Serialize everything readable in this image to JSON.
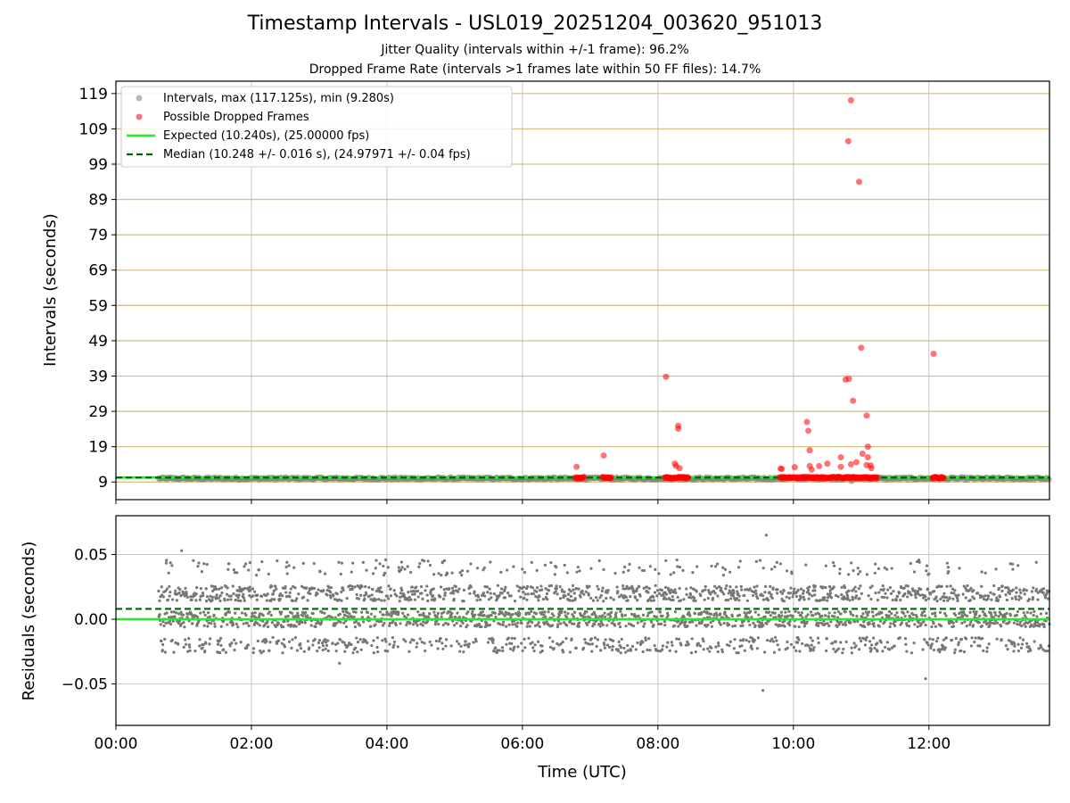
{
  "chart_data": [
    {
      "type": "scatter",
      "title": "Timestamp Intervals - USL019_20251204_003620_951013",
      "subtitle_lines": [
        "Jitter Quality (intervals within +/-1 frame): 96.2%",
        "Dropped Frame Rate (intervals >1 frames late within 50 FF files): 14.7%"
      ],
      "ylabel": "Intervals (seconds)",
      "xlabel": "",
      "xlim": [
        0.0,
        13.78
      ],
      "ylim": [
        4.0,
        122.5
      ],
      "y_ticks": [
        9,
        19,
        29,
        39,
        49,
        59,
        69,
        79,
        89,
        99,
        109,
        119
      ],
      "y_tick_labels": [
        "9",
        "19",
        "29",
        "39",
        "49",
        "59",
        "69",
        "79",
        "89",
        "99",
        "109",
        "119"
      ],
      "x_ticks": [
        0,
        2,
        4,
        6,
        8,
        10,
        12
      ],
      "grid": "on",
      "legend_position": "top-left",
      "legend": [
        "Intervals, max (117.125s), min (9.280s)",
        "Possible Dropped Frames",
        "Expected (10.240s), (25.00000 fps)",
        "Median (10.248 +/- 0.016 s), (24.97971 +/- 0.04 fps)"
      ],
      "expected_value": 10.24,
      "median_value": 10.248,
      "intervals_band": {
        "x_start": 0.63,
        "x_end": 13.78,
        "y_low": 9.28,
        "y_high": 10.29
      },
      "dropped_frame_clusters": [
        {
          "x_start": 6.78,
          "x_end": 6.92,
          "y": 10.24
        },
        {
          "x_start": 7.18,
          "x_end": 7.32,
          "y": 10.24
        },
        {
          "x_start": 8.1,
          "x_end": 8.45,
          "y": 10.24
        },
        {
          "x_start": 9.8,
          "x_end": 11.25,
          "y": 10.24
        },
        {
          "x_start": 12.05,
          "x_end": 12.22,
          "y": 10.24
        }
      ],
      "dropped_frames": [
        [
          6.8,
          13.3
        ],
        [
          7.2,
          16.5
        ],
        [
          8.12,
          38.8
        ],
        [
          8.25,
          14.2
        ],
        [
          8.27,
          13.5
        ],
        [
          8.3,
          24.9
        ],
        [
          8.3,
          24.1
        ],
        [
          8.32,
          12.9
        ],
        [
          9.81,
          12.8
        ],
        [
          9.83,
          12.7
        ],
        [
          10.02,
          13.2
        ],
        [
          10.2,
          26.0
        ],
        [
          10.22,
          23.5
        ],
        [
          10.24,
          18.0
        ],
        [
          10.24,
          13.5
        ],
        [
          10.27,
          12.5
        ],
        [
          10.38,
          13.5
        ],
        [
          10.5,
          14.2
        ],
        [
          10.7,
          16.0
        ],
        [
          10.7,
          13.3
        ],
        [
          10.77,
          38.0
        ],
        [
          10.81,
          105.5
        ],
        [
          10.82,
          38.2
        ],
        [
          10.85,
          117.1
        ],
        [
          10.85,
          14.0
        ],
        [
          10.88,
          32.0
        ],
        [
          10.93,
          14.6
        ],
        [
          10.97,
          94.0
        ],
        [
          11.0,
          47.0
        ],
        [
          11.02,
          17.0
        ],
        [
          11.08,
          13.8
        ],
        [
          11.08,
          27.8
        ],
        [
          11.1,
          16.0
        ],
        [
          11.1,
          19.0
        ],
        [
          11.14,
          13.7
        ],
        [
          11.15,
          12.9
        ],
        [
          12.07,
          45.3
        ]
      ]
    },
    {
      "type": "scatter",
      "ylabel": "Residuals (seconds)",
      "xlabel": "Time (UTC)",
      "xlim": [
        0.0,
        13.78
      ],
      "ylim": [
        -0.082,
        0.08
      ],
      "y_ticks": [
        0.05,
        0.0,
        -0.05
      ],
      "y_tick_labels": [
        "0.05",
        "0.00",
        "−0.05"
      ],
      "x_ticks": [
        0,
        2,
        4,
        6,
        8,
        10,
        12
      ],
      "x_tick_labels": [
        "00:00",
        "02:00",
        "04:00",
        "06:00",
        "08:00",
        "10:00",
        "12:00"
      ],
      "grid": "on",
      "expected_residual": 0.0,
      "median_residual": 0.008,
      "residual_range": {
        "x_start": 0.63,
        "x_end": 13.78,
        "levels": [
          -0.02,
          0.0,
          0.02,
          0.04
        ],
        "spread": 0.006
      },
      "residual_outliers": [
        [
          0.97,
          0.053
        ],
        [
          9.6,
          0.065
        ],
        [
          9.55,
          -0.055
        ],
        [
          11.95,
          -0.046
        ],
        [
          3.3,
          -0.034
        ]
      ]
    }
  ],
  "colors": {
    "intervals": "#808080",
    "dropped": "#ff0000",
    "expected": "#22ee22",
    "median": "#006400",
    "hgrid_top": "#d4c28a",
    "grid": "#c8c8c8",
    "residual_points": "#777777"
  }
}
